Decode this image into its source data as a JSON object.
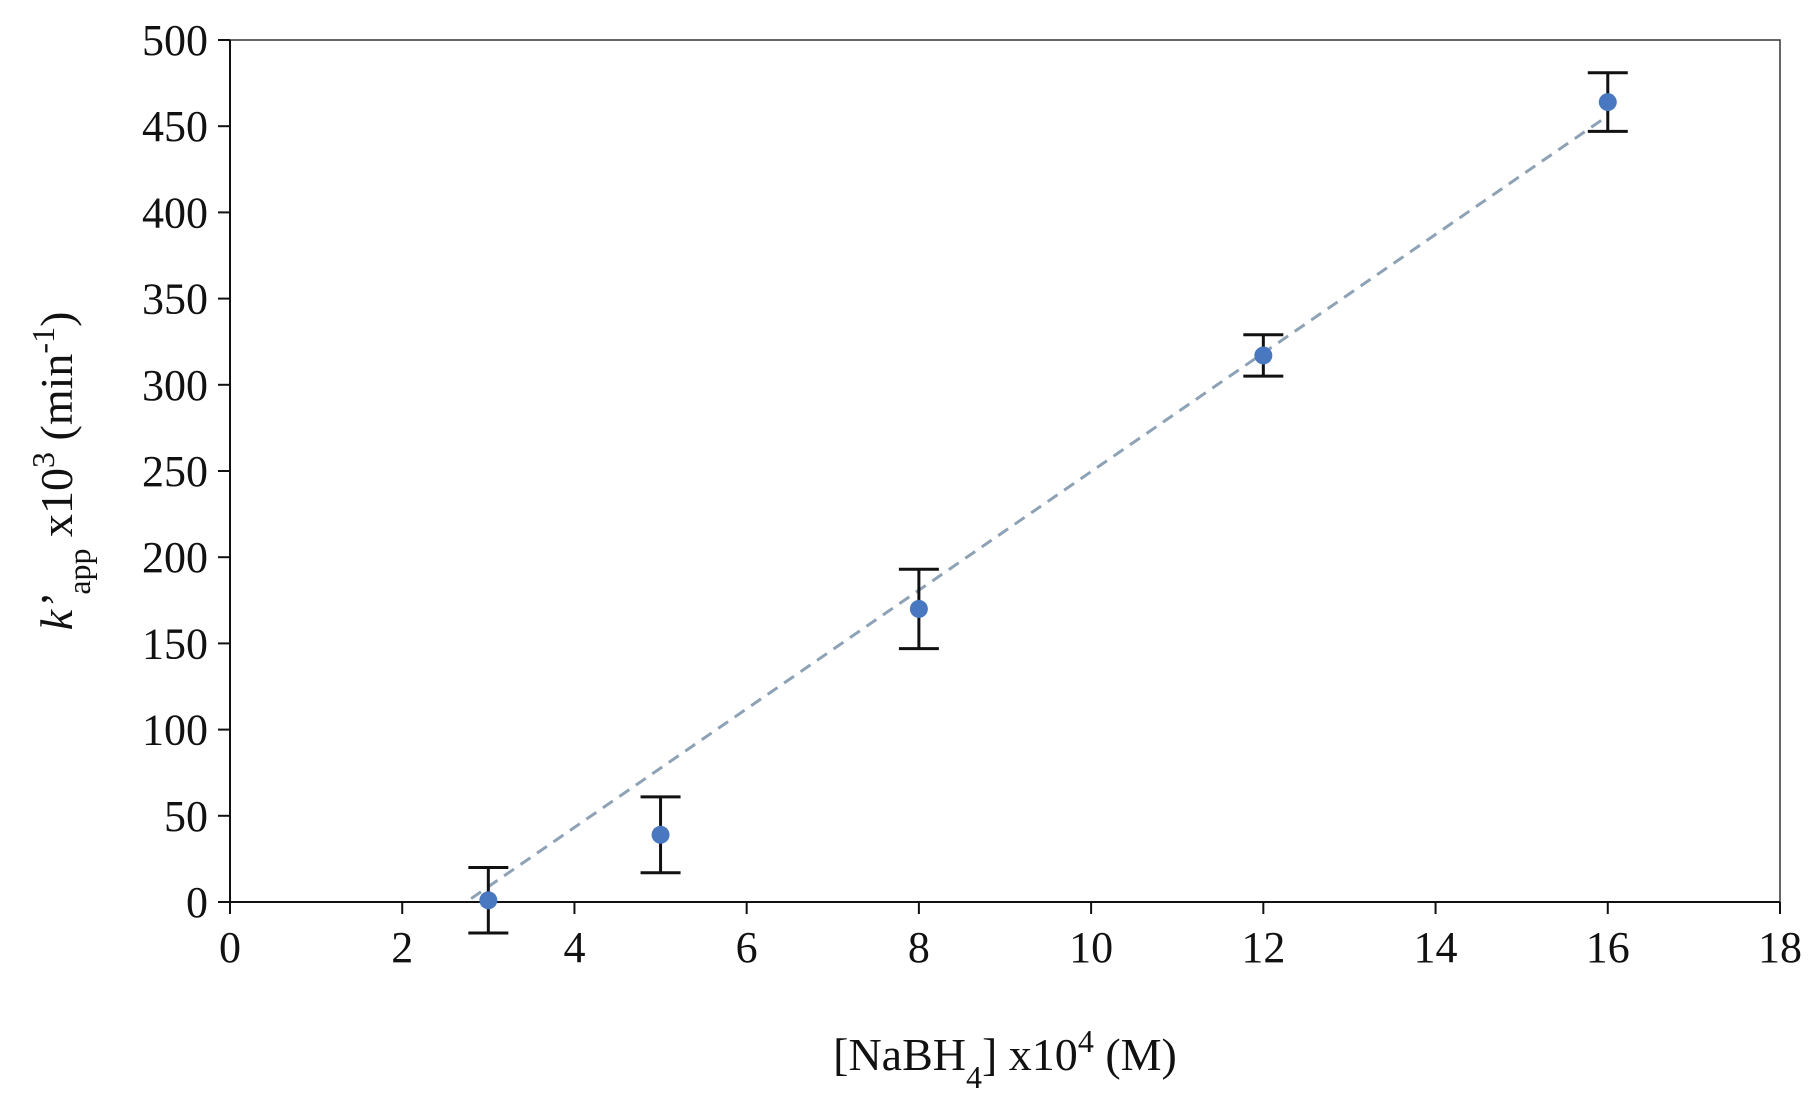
{
  "chart_data": {
    "type": "scatter",
    "xlabel": {
      "open": "[NaBH",
      "sub": "4",
      "mid": "] x10",
      "sup": "4",
      "close": " (M)"
    },
    "ylabel": {
      "k": "k",
      "prime": "’",
      "sub": "app",
      "mid": " x10",
      "sup": "3",
      "unit_open": " (min",
      "unit_sup": "-1",
      "unit_close": ")"
    },
    "xlim": [
      0,
      18
    ],
    "ylim": [
      0,
      500
    ],
    "xticks": [
      "0",
      "2",
      "4",
      "6",
      "8",
      "10",
      "12",
      "14",
      "16",
      "18"
    ],
    "yticks": [
      "0",
      "50",
      "100",
      "150",
      "200",
      "250",
      "300",
      "350",
      "400",
      "450",
      "500"
    ],
    "series": [
      {
        "points": [
          {
            "x": 3,
            "y": 1,
            "err": 19
          },
          {
            "x": 5,
            "y": 39,
            "err": 22
          },
          {
            "x": 8,
            "y": 170,
            "err": 23
          },
          {
            "x": 12,
            "y": 317,
            "err": 12
          },
          {
            "x": 16,
            "y": 464,
            "err": 17
          }
        ]
      }
    ],
    "trendline": {
      "style": "dashed",
      "x": [
        2.8,
        16
      ],
      "y": [
        2,
        456
      ]
    },
    "grid": false,
    "colors": {
      "marker": "#4a78c0",
      "trendline": "#8ea2b6",
      "errorbar": "#111111"
    }
  }
}
